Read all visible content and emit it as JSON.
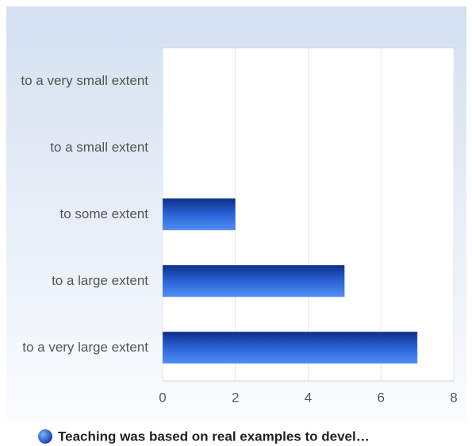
{
  "chart_data": {
    "type": "bar",
    "orientation": "horizontal",
    "categories": [
      "to a very small extent",
      "to a small extent",
      "to some extent",
      "to a large extent",
      "to a very large extent"
    ],
    "series": [
      {
        "name": "Teaching was based on real examples to devel…",
        "color": "#2a63d6",
        "values": [
          0,
          0,
          2,
          5,
          7
        ]
      }
    ],
    "xlim": [
      0,
      8
    ],
    "xticks": [
      0,
      2,
      4,
      6,
      8
    ],
    "grid": true,
    "legend": "bottom"
  }
}
